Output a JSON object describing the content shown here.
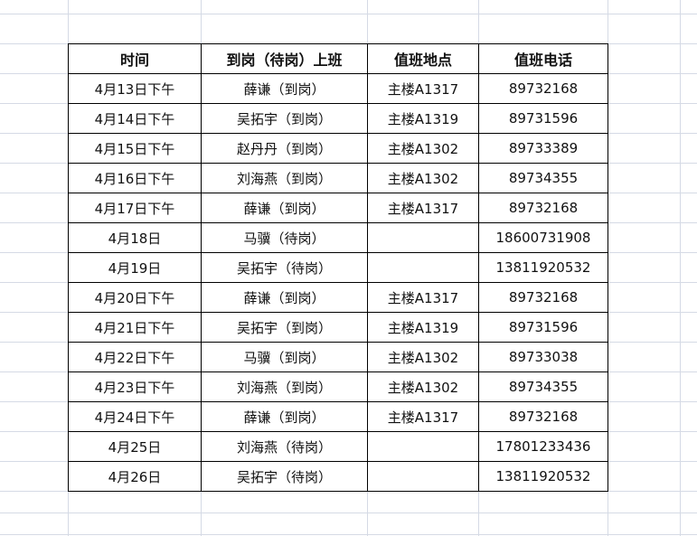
{
  "sheet": {
    "headers": [
      "时间",
      "到岗（待岗）上班",
      "值班地点",
      "值班电话"
    ],
    "rows": [
      [
        "4月13日下午",
        "薛谦（到岗）",
        "主楼A1317",
        "89732168"
      ],
      [
        "4月14日下午",
        "吴拓宇（到岗）",
        "主楼A1319",
        "89731596"
      ],
      [
        "4月15日下午",
        "赵丹丹（到岗）",
        "主楼A1302",
        "89733389"
      ],
      [
        "4月16日下午",
        "刘海燕（到岗）",
        "主楼A1302",
        "89734355"
      ],
      [
        "4月17日下午",
        "薛谦（到岗）",
        "主楼A1317",
        "89732168"
      ],
      [
        "4月18日",
        "马骥（待岗）",
        "",
        "18600731908"
      ],
      [
        "4月19日",
        "吴拓宇（待岗）",
        "",
        "13811920532"
      ],
      [
        "4月20日下午",
        "薛谦（到岗）",
        "主楼A1317",
        "89732168"
      ],
      [
        "4月21日下午",
        "吴拓宇（到岗）",
        "主楼A1319",
        "89731596"
      ],
      [
        "4月22日下午",
        "马骥（到岗）",
        "主楼A1302",
        "89733038"
      ],
      [
        "4月23日下午",
        "刘海燕（到岗）",
        "主楼A1302",
        "89734355"
      ],
      [
        "4月24日下午",
        "薛谦（到岗）",
        "主楼A1317",
        "89732168"
      ],
      [
        "4月25日",
        "刘海燕（待岗）",
        "",
        "17801233436"
      ],
      [
        "4月26日",
        "吴拓宇（待岗）",
        "",
        "13811920532"
      ]
    ]
  },
  "colors": {
    "gridline": "#d5dae5",
    "border": "#000000"
  }
}
